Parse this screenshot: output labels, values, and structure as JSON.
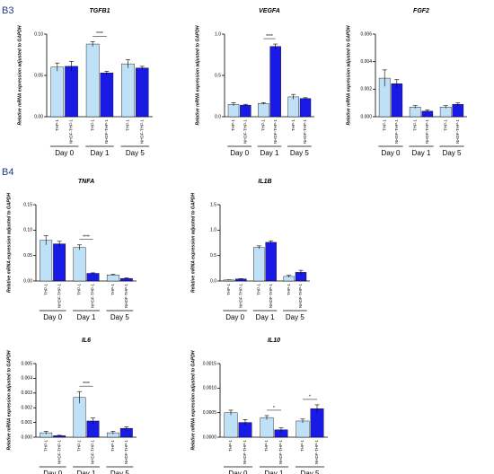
{
  "panel_labels": [
    "B3",
    "B4"
  ],
  "chart_data": [
    {
      "type": "bar",
      "title": "TGFB1",
      "ylabel": "Relative mRNA expression adjusted to GAPDH",
      "categories": [
        "Day 0",
        "Day 1",
        "Day 5"
      ],
      "series": [
        {
          "name": "THP-1",
          "color": "#bfe1f8",
          "values": [
            0.06,
            0.088,
            0.064
          ],
          "errors": [
            0.005,
            0.003,
            0.005
          ]
        },
        {
          "name": "NHDF-THP-1",
          "color": "#1a1ae6",
          "values": [
            0.061,
            0.053,
            0.059
          ],
          "errors": [
            0.006,
            0.002,
            0.002
          ]
        }
      ],
      "ylim": [
        0,
        0.1
      ],
      "yticks": [
        {
          "value": 0,
          "label": "0.00"
        },
        0.05,
        {
          "value": 0.1,
          "label": "0.10"
        }
      ],
      "annotations": [
        {
          "text": "****",
          "category": "Day 1"
        }
      ]
    },
    {
      "type": "bar",
      "title": "VEGFA",
      "ylabel": "Relative mRNA expression adjusted to GAPDH",
      "categories": [
        "Day 0",
        "Day 1",
        "Day 5"
      ],
      "series": [
        {
          "name": "THP-1",
          "color": "#bfe1f8",
          "values": [
            0.15,
            0.16,
            0.24
          ],
          "errors": [
            0.02,
            0.01,
            0.03
          ]
        },
        {
          "name": "NHDF-THP-1",
          "color": "#1a1ae6",
          "values": [
            0.14,
            0.85,
            0.22
          ],
          "errors": [
            0.01,
            0.03,
            0.01
          ]
        }
      ],
      "ylim": [
        0,
        1
      ],
      "yticks": [
        {
          "value": 0,
          "label": "0.0"
        },
        0.5,
        {
          "value": 1,
          "label": "1.0"
        }
      ],
      "annotations": [
        {
          "text": "****",
          "category": "Day 1"
        }
      ]
    },
    {
      "type": "bar",
      "title": "FGF2",
      "ylabel": "Relative mRNA expression adjusted to GAPDH",
      "categories": [
        "Day 0",
        "Day 1",
        "Day 5"
      ],
      "series": [
        {
          "name": "THP-1",
          "color": "#bfe1f8",
          "values": [
            0.0028,
            0.0007,
            0.0007
          ],
          "errors": [
            0.0006,
            0.0001,
            0.0001
          ]
        },
        {
          "name": "NHDF-THP-1",
          "color": "#1a1ae6",
          "values": [
            0.0024,
            0.0004,
            0.0009
          ],
          "errors": [
            0.0003,
            0.0001,
            0.0001
          ]
        }
      ],
      "ylim": [
        0,
        0.006
      ],
      "yticks": [
        {
          "value": 0,
          "label": "0.000"
        },
        0.002,
        0.004,
        0.006
      ],
      "annotations": []
    },
    {
      "type": "bar",
      "title": "TNFA",
      "ylabel": "Relative mRNA expression adjusted to GAPDH",
      "categories": [
        "Day 0",
        "Day 1",
        "Day 5"
      ],
      "series": [
        {
          "name": "THP-1",
          "color": "#bfe1f8",
          "values": [
            0.08,
            0.066,
            0.012
          ],
          "errors": [
            0.009,
            0.005,
            0.001
          ]
        },
        {
          "name": "NHDF-THP-1",
          "color": "#1a1ae6",
          "values": [
            0.073,
            0.015,
            0.005
          ],
          "errors": [
            0.005,
            0.001,
            0.001
          ]
        }
      ],
      "ylim": [
        0,
        0.15
      ],
      "yticks": [
        {
          "value": 0,
          "label": "0.00"
        },
        0.05,
        {
          "value": 0.1,
          "label": "0.10"
        },
        0.15
      ],
      "annotations": [
        {
          "text": "****",
          "category": "Day 1"
        }
      ]
    },
    {
      "type": "bar",
      "title": "IL1B",
      "ylabel": "Relative mRNA expression adjusted to GAPDH",
      "categories": [
        "Day 0",
        "Day 1",
        "Day 5"
      ],
      "series": [
        {
          "name": "THP-1",
          "color": "#bfe1f8",
          "values": [
            0.02,
            0.66,
            0.09
          ],
          "errors": [
            0.003,
            0.03,
            0.02
          ]
        },
        {
          "name": "NHDF-THP-1",
          "color": "#1a1ae6",
          "values": [
            0.04,
            0.76,
            0.17
          ],
          "errors": [
            0.005,
            0.03,
            0.04
          ]
        }
      ],
      "ylim": [
        0,
        1.5
      ],
      "yticks": [
        {
          "value": 0,
          "label": "0.0"
        },
        0.5,
        {
          "value": 1,
          "label": "1.0"
        },
        1.5
      ],
      "annotations": []
    },
    {
      "type": "bar",
      "title": "IL6",
      "ylabel": "Relative mRNA expression adjusted to GAPDH",
      "categories": [
        "Day 0",
        "Day 1",
        "Day 5"
      ],
      "series": [
        {
          "name": "THP-1",
          "color": "#bfe1f8",
          "values": [
            0.0003,
            0.0027,
            0.0003
          ],
          "errors": [
            0.0001,
            0.0004,
            0.0001
          ]
        },
        {
          "name": "NHDF-THP-1",
          "color": "#1a1ae6",
          "values": [
            0.0001,
            0.0011,
            0.0006
          ],
          "errors": [
            3e-05,
            0.0002,
            0.0001
          ]
        }
      ],
      "ylim": [
        0,
        0.005
      ],
      "yticks": [
        {
          "value": 0,
          "label": "0.000"
        },
        0.001,
        0.002,
        0.003,
        0.004,
        0.005
      ],
      "annotations": [
        {
          "text": "****",
          "category": "Day 1"
        }
      ]
    },
    {
      "type": "bar",
      "title": "IL10",
      "ylabel": "Relative mRNA expression adjusted to GAPDH",
      "categories": [
        "Day 0",
        "Day 1",
        "Day 5"
      ],
      "series": [
        {
          "name": "THP-1",
          "color": "#bfe1f8",
          "values": [
            0.0005,
            0.0004,
            0.00033
          ],
          "errors": [
            5e-05,
            4e-05,
            4e-05
          ]
        },
        {
          "name": "NHDF-THP-1",
          "color": "#1a1ae6",
          "values": [
            0.0003,
            0.00015,
            0.00058
          ],
          "errors": [
            6e-05,
            4e-05,
            8e-05
          ]
        }
      ],
      "ylim": [
        0,
        0.0015
      ],
      "yticks": [
        {
          "value": 0,
          "label": "0.0000"
        },
        {
          "value": 0.0005,
          "label": "0.0005"
        },
        {
          "value": 0.001,
          "label": "0.0010"
        },
        {
          "value": 0.0015,
          "label": "0.0015"
        }
      ],
      "annotations": [
        {
          "text": "*",
          "category": "Day 1"
        },
        {
          "text": "*",
          "category": "Day 5"
        }
      ]
    }
  ]
}
